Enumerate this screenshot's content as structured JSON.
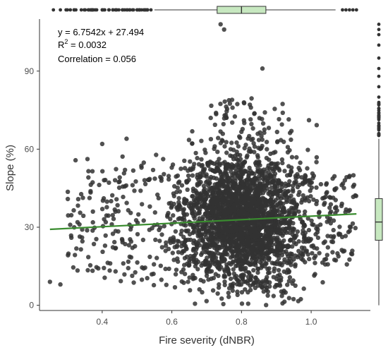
{
  "chart_data": {
    "type": "scatter",
    "xlabel": "Fire severity (dNBR)",
    "ylabel": "Slope (%)",
    "xlim": [
      0.22,
      1.17
    ],
    "ylim": [
      -2,
      110
    ],
    "x_ticks": [
      0.4,
      0.6,
      0.8,
      1.0
    ],
    "x_tick_labels": [
      "0.4",
      "0.6",
      "0.8",
      "1.0"
    ],
    "y_ticks": [
      0,
      30,
      60,
      90
    ],
    "y_tick_labels": [
      "0",
      "30",
      "60",
      "90"
    ],
    "grid": false,
    "annotation": {
      "equation": "y = 6.7542x + 27.494",
      "r2_prefix": "R",
      "r2_exp": "2",
      "r2_value": " = 0.0032",
      "correlation": "Correlation = 0.056"
    },
    "regression": {
      "slope": 6.7542,
      "intercept": 27.494,
      "x_range": [
        0.25,
        1.13
      ],
      "color": "#3a8c2f"
    },
    "point_color": "#333333",
    "boxplot_fill": "#c7e8c0",
    "x_marginal_box": {
      "min": 0.55,
      "q1": 0.73,
      "median": 0.8,
      "q3": 0.87,
      "max": 1.07
    },
    "y_marginal_box": {
      "min": 0,
      "q1": 25,
      "median": 32,
      "q3": 41,
      "max": 64
    },
    "notable_points": [
      {
        "x": 0.74,
        "y": 108
      },
      {
        "x": 0.75,
        "y": 106
      },
      {
        "x": 0.86,
        "y": 91
      },
      {
        "x": 0.25,
        "y": 9
      },
      {
        "x": 0.28,
        "y": 8
      },
      {
        "x": 0.4,
        "y": 62
      },
      {
        "x": 0.47,
        "y": 64
      }
    ],
    "marginal_outliers_x": [
      0.26,
      0.28,
      0.3,
      0.32,
      0.34,
      0.36,
      0.38,
      0.4,
      0.42,
      0.44,
      0.46,
      0.48,
      0.5,
      0.52,
      0.54,
      1.09,
      1.1,
      1.11,
      1.12,
      1.13
    ],
    "marginal_outliers_y": [
      66,
      68,
      70,
      72,
      74,
      77,
      80,
      84,
      88,
      91,
      95,
      100,
      104,
      106,
      108
    ]
  }
}
